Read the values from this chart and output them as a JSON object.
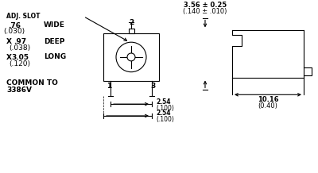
{
  "bg_color": "#ffffff",
  "line_color": "#000000",
  "text_color": "#000000",
  "font_size_label": 6.5,
  "font_size_small": 5.5,
  "adj_slot_text": "ADJ. SLOT",
  "dim_top": "3.56 ± 0.25",
  "dim_top2": "(.140 ± .010)",
  "dim_bot": "10.16",
  "dim_bot2": "(0.40)",
  "dim_pin1": "2.54",
  "dim_pin1b": "(.100)",
  "dim_pin2": "2.54",
  "dim_pin2b": "(.100)",
  "label_76": ".76",
  "label_76b": "(.030)",
  "label_wide": "WIDE",
  "label_97": ".97",
  "label_97b": "(.038)",
  "label_deep": "DEEP",
  "label_305": "3.05",
  "label_305b": "(.120)",
  "label_long": "LONG",
  "label_common1": "COMMON TO",
  "label_common2": "3386V",
  "label_x": "X",
  "label_1": "1",
  "label_2": "2",
  "label_3": "3"
}
